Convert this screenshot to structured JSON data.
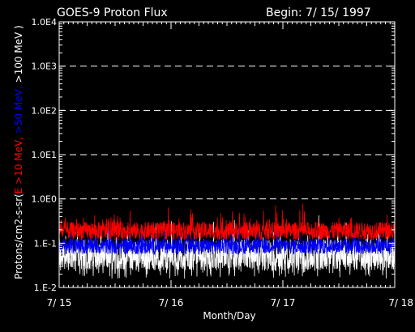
{
  "chart_data": {
    "type": "line",
    "title": "GOES-9 Proton Flux",
    "begin_label": "Begin: 7/ 15/ 1997",
    "xlabel": "Month/Day",
    "ylabel_parts": [
      {
        "text": "Protons/cm2-s-sr(",
        "color": "#ffffff"
      },
      {
        "text": "E >10 MeV, ",
        "color": "#ff0000"
      },
      {
        "text": ">50 MeV, ",
        "color": "#0000ff"
      },
      {
        "text": ">100 MeV )",
        "color": "#ffffff"
      }
    ],
    "x_ticks": [
      "7/ 15",
      "7/ 16",
      "7/ 17",
      "7/ 18"
    ],
    "xlim": [
      0,
      3
    ],
    "y_scale": "log",
    "ylim": [
      0.01,
      10000
    ],
    "y_ticks": [
      {
        "value": 0.01,
        "label": "1.E-2"
      },
      {
        "value": 0.1,
        "label": "1.E-1"
      },
      {
        "value": 1,
        "label": "1.0E0"
      },
      {
        "value": 10,
        "label": "1.0E1"
      },
      {
        "value": 100,
        "label": "1.0E2"
      },
      {
        "value": 1000,
        "label": "1.0E3"
      },
      {
        "value": 10000,
        "label": "1.0E4"
      }
    ],
    "gridlines_dashed_at": [
      1,
      10,
      100,
      1000
    ],
    "series": [
      {
        "name": ">100 MeV",
        "color": "#ffffff",
        "baseline": 0.055,
        "spread": 0.35,
        "spike": 0.55
      },
      {
        "name": ">50 MeV",
        "color": "#0000ff",
        "baseline": 0.085,
        "spread": 0.18,
        "spike": 0.3
      },
      {
        "name": ">10 MeV",
        "color": "#ff0000",
        "baseline": 0.19,
        "spread": 0.2,
        "spike": 0.45
      }
    ]
  }
}
